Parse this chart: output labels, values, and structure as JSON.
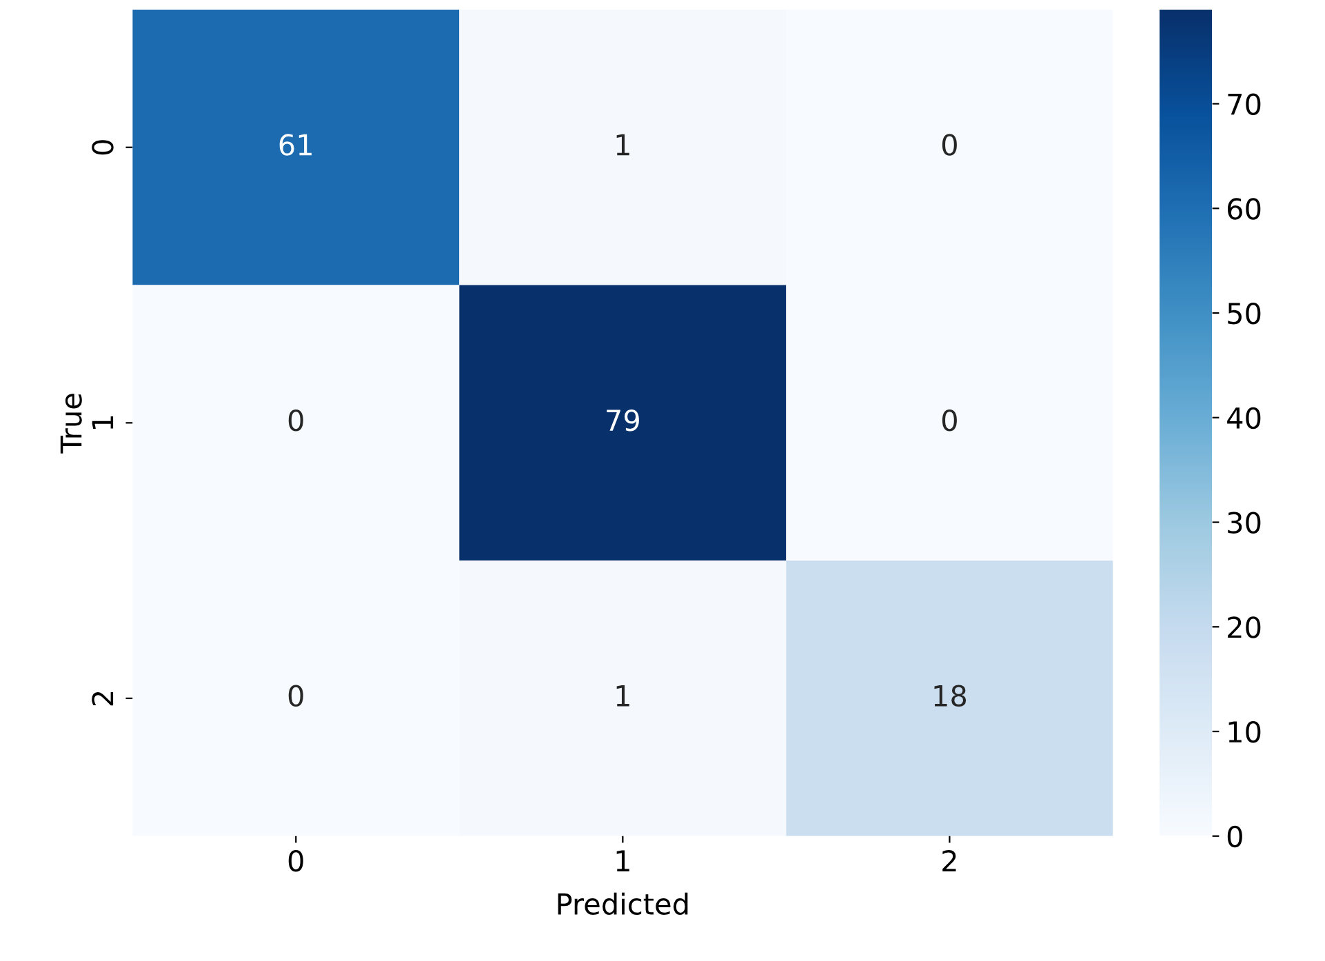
{
  "chart_data": {
    "type": "heatmap",
    "xlabel": "Predicted",
    "ylabel": "True",
    "categories": [
      "0",
      "1",
      "2"
    ],
    "y_categories": [
      "0",
      "1",
      "2"
    ],
    "cells": [
      [
        61,
        1,
        0
      ],
      [
        0,
        79,
        0
      ],
      [
        0,
        1,
        18
      ]
    ],
    "clim": [
      0,
      79
    ],
    "cticks": [
      0,
      10,
      20,
      30,
      40,
      50,
      60,
      70
    ],
    "data_labels": true
  }
}
